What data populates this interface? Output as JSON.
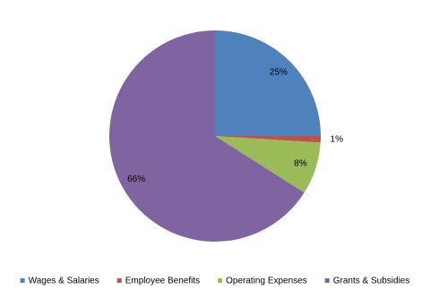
{
  "chart_data": {
    "type": "pie",
    "categories": [
      "Wages & Salaries",
      "Employee Benefits",
      "Operating Expenses",
      "Grants & Subsidies"
    ],
    "values": [
      25,
      1,
      8,
      66
    ],
    "value_labels": [
      "25%",
      "1%",
      "8%",
      "66%"
    ],
    "colors": [
      "#4f81bd",
      "#c0504d",
      "#9bbb59",
      "#8064a2"
    ],
    "legend": "bottom"
  }
}
